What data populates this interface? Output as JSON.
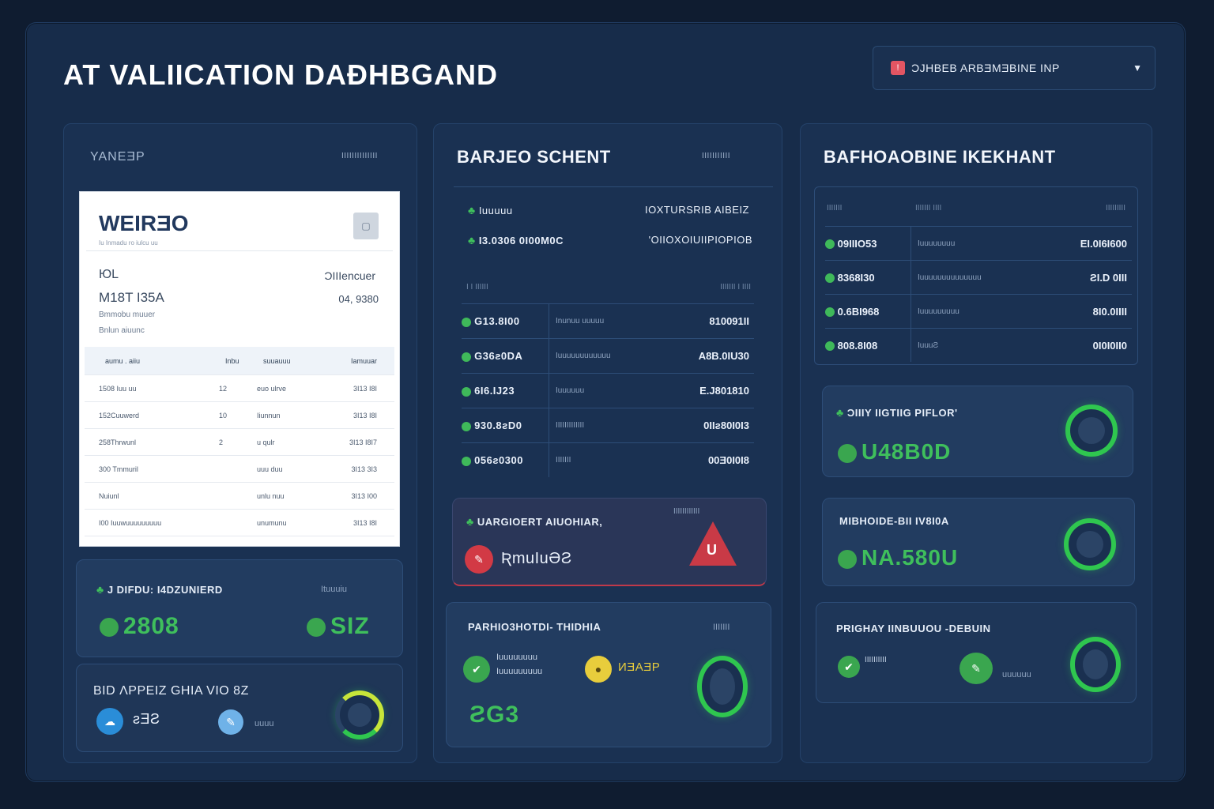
{
  "title": "AT VALIICATION DAÐHBGAND",
  "top_select": {
    "label": "ƆJHBEB ARBƎMƎBINE INP"
  },
  "col1": {
    "label": "YANEƎP",
    "tag": "IIIIIIIIIIIIII",
    "invoice": {
      "logo": "WEIRƎO",
      "subtitle": "Iu Inmadu ro iulcu uu",
      "left_1": "ЮL",
      "left_2": "M18T I35A",
      "left_3": "Bmmobu muuer",
      "left_4": "Bnlun aiuunc",
      "right_1": "ƆIIIencuer",
      "right_2": "04, 9380",
      "columns": [
        "aumu . aiiu",
        "Inbu",
        "suuauuu",
        "Iamuuar"
      ],
      "rows": [
        [
          "1508 Iuu uu",
          "12",
          "euo ulrve",
          "3I13 I8I"
        ],
        [
          "152Cuuwerd",
          "10",
          "Iiunnun",
          "3I13 I8I"
        ],
        [
          "258Thrwunl",
          "2",
          "u qulr",
          "3I13 I8I7"
        ],
        [
          "300 Tmmuril",
          "",
          "uuu duu",
          "3I13 3I3"
        ],
        [
          "Nuiunl",
          "",
          "unlu nuu",
          "3I13 I00"
        ],
        [
          "I00 Iuuwuuuuuuuuu",
          "",
          "unumunu",
          "3I13 I8I"
        ]
      ]
    },
    "card1": {
      "title": "J DIFDU: I4DZUNIERD",
      "tag": "Ituuuiu",
      "value_left": "2808",
      "value_right": "SIZ"
    },
    "card2": {
      "title": "BID ΛPPEIZ GHIA VIO 8Z",
      "chip1": "ƨƎƧ",
      "chip2": "uuuu"
    }
  },
  "col2": {
    "header": "BARJEO SCHENT",
    "tag": "IIIIIIIIIII",
    "line1_left": "Iuuuuu",
    "line1_right": "IOXTURSRIB AIBEIZ",
    "line2_left": "I3.0306 0I00M0C",
    "line2_right": "'OIIOXOIUIIPIOPIOB",
    "sub_head_left": "I I IIIIII",
    "sub_head_right": "IIIIIII I IIII",
    "rows": [
      {
        "id": "G13.8I00",
        "desc": "Inunuu uuuuu",
        "val": "810091II"
      },
      {
        "id": "G36ƨ0DA",
        "desc": "Iuuuuuuuuuuuu",
        "val": "A8B.0IU30"
      },
      {
        "id": "6I6.IJ23",
        "desc": "Iuuuuuu",
        "val": "E.J801810"
      },
      {
        "id": "930.8ƨD0",
        "desc": "IIIIIIIIIIIII",
        "val": "0IIƨ80I0I3"
      },
      {
        "id": "056ƨ0300",
        "desc": "IIIIIII",
        "val": "00Ǝ0I0I8"
      }
    ],
    "alert": {
      "title": "UARGIOERT AIUOHIAR,",
      "tag": "IIIIIIIIIIII",
      "label": "ƦmuIuƏƧ",
      "badge": "U"
    },
    "card": {
      "title": "PARHIO3HOTDI- THIDHIA",
      "tag": "IIIIIII",
      "item1_l1": "Iuuuuuuuu",
      "item1_l2": "Iuuuuuuuuu",
      "item2": "ИƎAƎP",
      "value": "ƧG3"
    }
  },
  "col3": {
    "header": "BAFHOAOBINE IKEKHANT",
    "columns": [
      "IIIIIII",
      "IIIIIII   IIII",
      "IIIIIIIII"
    ],
    "rows": [
      {
        "id": "09IIIO53",
        "desc": "Iuuuuuuuu",
        "val": "EI.0I6I600"
      },
      {
        "id": "8368I30",
        "desc": "Iuuuuuuuuuuuuuu",
        "val": "ƧI.D 0III"
      },
      {
        "id": "0.6BI968",
        "desc": "Iuuuuuuuuu",
        "val": "8I0.0IIII"
      },
      {
        "id": "808.8I08",
        "desc": "IuuuƧ",
        "val": "0I0I0II0"
      }
    ],
    "card1": {
      "title": "ƆIIIY IIGTIIG PIFLOR'",
      "value": "U48B0D"
    },
    "card2": {
      "title": "MIBHOIDE-BII IV8I0A",
      "value": "NA.580U"
    },
    "card3": {
      "title": "PRIGHAY IINBUUOU -DEBUIN",
      "item1": "IIIIIIIIII",
      "item2": "uuuuuu"
    }
  }
}
